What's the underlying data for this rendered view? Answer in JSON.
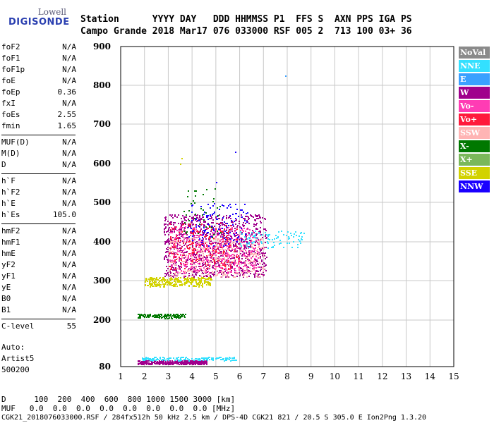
{
  "logo": {
    "top": "Lowell",
    "main": "DIGISONDE"
  },
  "header": {
    "line1": "Station      YYYY DAY   DDD HHMMSS P1  FFS S  AXN PPS IGA PS",
    "line2": "Campo Grande 2018 Mar17 076 033000 RSF 005 2  713 100 03+ 36"
  },
  "params_groups": [
    [
      {
        "k": "foF2",
        "v": "N/A"
      },
      {
        "k": "foF1",
        "v": "N/A"
      },
      {
        "k": "foF1p",
        "v": "N/A"
      },
      {
        "k": "foE",
        "v": "N/A"
      },
      {
        "k": "foEp",
        "v": "0.36"
      },
      {
        "k": "fxI",
        "v": "N/A"
      },
      {
        "k": "foEs",
        "v": "2.55"
      },
      {
        "k": "fmin",
        "v": "1.65"
      }
    ],
    [
      {
        "k": "MUF(D)",
        "v": "N/A"
      },
      {
        "k": "M(D)",
        "v": "N/A"
      },
      {
        "k": "D",
        "v": "N/A"
      }
    ],
    [
      {
        "k": "h`F",
        "v": "N/A"
      },
      {
        "k": "h`F2",
        "v": "N/A"
      },
      {
        "k": "h`E",
        "v": "N/A"
      },
      {
        "k": "h`Es",
        "v": "105.0"
      }
    ],
    [
      {
        "k": "hmF2",
        "v": "N/A"
      },
      {
        "k": "hmF1",
        "v": "N/A"
      },
      {
        "k": "hmE",
        "v": "N/A"
      },
      {
        "k": "yF2",
        "v": "N/A"
      },
      {
        "k": "yF1",
        "v": "N/A"
      },
      {
        "k": "yE",
        "v": "N/A"
      },
      {
        "k": "B0",
        "v": "N/A"
      },
      {
        "k": "B1",
        "v": "N/A"
      }
    ],
    [
      {
        "k": "C-level",
        "v": "55"
      }
    ]
  ],
  "auto": {
    "line1": "Auto:",
    "line2": "Artist5",
    "line3": "500200"
  },
  "legend": [
    {
      "label": "NoVal",
      "color": "#8a8a8a"
    },
    {
      "label": "NNE",
      "color": "#33e0ff"
    },
    {
      "label": "E",
      "color": "#3aa0ff"
    },
    {
      "label": "W",
      "color": "#a0008c"
    },
    {
      "label": "Vo-",
      "color": "#ff3cb4"
    },
    {
      "label": "Vo+",
      "color": "#ff1a3c"
    },
    {
      "label": "SSW",
      "color": "#ffb4b4"
    },
    {
      "label": "X-",
      "color": "#007800"
    },
    {
      "label": "X+",
      "color": "#7ab85a"
    },
    {
      "label": "SSE",
      "color": "#d2d200"
    },
    {
      "label": "NNW",
      "color": "#1a00ff"
    }
  ],
  "chart_data": {
    "type": "scatter",
    "xlabel": "",
    "ylabel": "",
    "xlim": [
      0.5,
      15
    ],
    "ylim": [
      80,
      900
    ],
    "x_ticks": [
      1,
      2,
      3,
      4,
      5,
      6,
      7,
      8,
      9,
      10,
      11,
      12,
      13,
      14,
      15
    ],
    "y_ticks": [
      80,
      200,
      300,
      400,
      500,
      600,
      700,
      800,
      900
    ],
    "grid": true,
    "clusters": [
      {
        "name": "Es low trace",
        "color": "#a0008c",
        "x_range": [
          1.7,
          4.6
        ],
        "y_range": [
          87,
          97
        ],
        "n": 380
      },
      {
        "name": "Es low trace cyan",
        "color": "#33e0ff",
        "x_range": [
          1.9,
          5.9
        ],
        "y_range": [
          97,
          106
        ],
        "n": 160
      },
      {
        "name": "Es second hop",
        "color": "#007800",
        "x_range": [
          1.7,
          3.7
        ],
        "y_range": [
          206,
          217
        ],
        "n": 130
      },
      {
        "name": "Es third hop",
        "color": "#d2d200",
        "x_range": [
          2.0,
          4.8
        ],
        "y_range": [
          286,
          310
        ],
        "n": 300
      },
      {
        "name": "F layer main",
        "color": "#a0008c",
        "x_range": [
          2.8,
          7.1
        ],
        "y_range": [
          310,
          470
        ],
        "n": 1100
      },
      {
        "name": "F layer pink",
        "color": "#ffb4b4",
        "x_range": [
          3.0,
          7.0
        ],
        "y_range": [
          310,
          410
        ],
        "n": 450
      },
      {
        "name": "F layer Vo-",
        "color": "#ff3cb4",
        "x_range": [
          3.0,
          6.8
        ],
        "y_range": [
          320,
          440
        ],
        "n": 400
      },
      {
        "name": "F layer NNW",
        "color": "#1a00ff",
        "x_range": [
          3.8,
          6.3
        ],
        "y_range": [
          390,
          500
        ],
        "n": 120
      },
      {
        "name": "F layer red",
        "color": "#ff1a3c",
        "x_range": [
          3.0,
          6.0
        ],
        "y_range": [
          330,
          450
        ],
        "n": 180
      },
      {
        "name": "F high cyan",
        "color": "#33e0ff",
        "x_range": [
          6.0,
          8.7
        ],
        "y_range": [
          385,
          430
        ],
        "n": 90
      },
      {
        "name": "F green",
        "color": "#007800",
        "x_range": [
          3.6,
          5.2
        ],
        "y_range": [
          410,
          540
        ],
        "n": 40
      }
    ],
    "isolated_points": [
      {
        "x": 7.9,
        "y": 826,
        "color": "#3aa0ff"
      },
      {
        "x": 5.8,
        "y": 630,
        "color": "#1a00ff"
      },
      {
        "x": 5.0,
        "y": 553,
        "color": "#1a00ff"
      },
      {
        "x": 3.55,
        "y": 615,
        "color": "#d2d200"
      },
      {
        "x": 3.5,
        "y": 600,
        "color": "#d2d200"
      }
    ]
  },
  "footer": {
    "line1": "D      100  200  400  600  800 1000 1500 3000 [km]",
    "line2": "MUF   0.0  0.0  0.0  0.0  0.0  0.0  0.0  0.0 [MHz]",
    "line3": "CGK21_2018076033000.RSF / 284fx512h 50 kHz 2.5 km / DPS-4D CGK21 821 / 20.5 S 305.0 E Ion2Png 1.3.20"
  }
}
